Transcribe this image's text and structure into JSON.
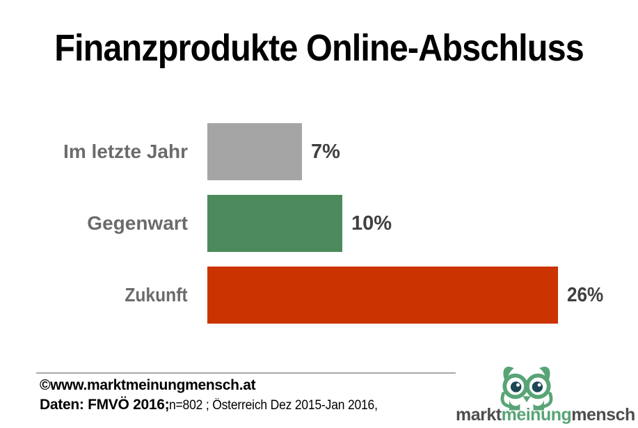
{
  "title": "Finanzprodukte Online-Abschluss",
  "chart_data": {
    "type": "bar",
    "orientation": "horizontal",
    "title": "Finanzprodukte Online-Abschluss",
    "categories": [
      "Im letzte Jahr",
      "Gegenwart",
      "Zukunft"
    ],
    "values": [
      7,
      10,
      26
    ],
    "value_labels": [
      "7%",
      "10%",
      "26%"
    ],
    "unit": "%",
    "xlim": [
      0,
      26
    ],
    "grid": false,
    "legend": "none",
    "bar_colors": [
      "#a5a5a5",
      "#4c8a5c",
      "#cb3301"
    ],
    "label_color": "#6b6b6b",
    "value_label_color": "#3f3f3f"
  },
  "footer": {
    "copyright": "©www.marktmeinungmensch.at",
    "source_bold": "Daten: FMVÖ 2016;",
    "source_rest": " n=802 ; Österreich Dez 2015-Jan 2016,"
  },
  "logo": {
    "part1": "markt",
    "part2": "meinung",
    "part3": "mensch",
    "green": "#58a476",
    "gray": "#4d4d4d",
    "pupil": "#1c4653"
  }
}
